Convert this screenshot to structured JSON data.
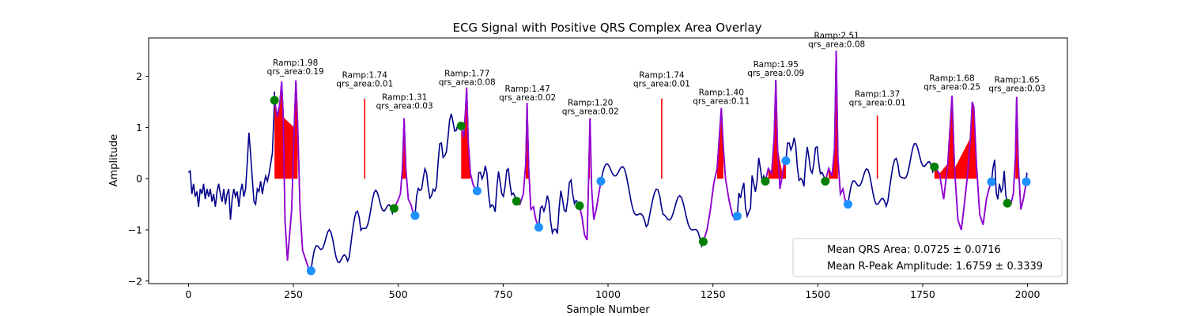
{
  "chart_data": {
    "type": "line",
    "title": "ECG Signal with Positive QRS Complex Area Overlay",
    "xlabel": "Sample Number",
    "ylabel": "Amplitude",
    "xlim": [
      -95,
      2095
    ],
    "ylim": [
      -2.05,
      2.75
    ],
    "xticks": [
      0,
      250,
      500,
      750,
      1000,
      1250,
      1500,
      1750,
      2000
    ],
    "yticks": [
      -2,
      -1,
      0,
      1,
      2
    ],
    "grid": false,
    "colors": {
      "signal": "#00008b",
      "qrs_segment": "#9400d3",
      "qrs_area": "#ff0000",
      "r_line": "#ff0000",
      "onset_marker": "#008000",
      "offset_marker": "#1e90ff"
    },
    "signal": {
      "name": "",
      "points": [
        [
          0,
          0.12
        ],
        [
          4,
          0.15
        ],
        [
          8,
          -0.3
        ],
        [
          12,
          -0.1
        ],
        [
          16,
          -0.35
        ],
        [
          20,
          -0.25
        ],
        [
          24,
          -0.55
        ],
        [
          28,
          -0.2
        ],
        [
          32,
          -0.3
        ],
        [
          36,
          -0.1
        ],
        [
          40,
          -0.4
        ],
        [
          44,
          -0.2
        ],
        [
          48,
          -0.35
        ],
        [
          52,
          -0.2
        ],
        [
          56,
          -0.45
        ],
        [
          60,
          -0.3
        ],
        [
          64,
          -0.55
        ],
        [
          68,
          -0.25
        ],
        [
          72,
          -0.1
        ],
        [
          76,
          -0.3
        ],
        [
          80,
          -0.45
        ],
        [
          84,
          -0.2
        ],
        [
          88,
          -0.5
        ],
        [
          92,
          -0.3
        ],
        [
          96,
          -0.2
        ],
        [
          100,
          -0.8
        ],
        [
          104,
          -0.4
        ],
        [
          108,
          -0.2
        ],
        [
          112,
          -0.35
        ],
        [
          116,
          -0.25
        ],
        [
          120,
          -0.55
        ],
        [
          124,
          -0.25
        ],
        [
          128,
          -0.1
        ],
        [
          132,
          -0.35
        ],
        [
          136,
          -0.2
        ],
        [
          140,
          0.3
        ],
        [
          144,
          0.9
        ],
        [
          148,
          0.5
        ],
        [
          152,
          0.0
        ],
        [
          156,
          -0.45
        ],
        [
          160,
          -0.5
        ],
        [
          164,
          -0.2
        ],
        [
          168,
          -0.25
        ],
        [
          172,
          -0.05
        ],
        [
          176,
          -0.3
        ],
        [
          180,
          -0.1
        ],
        [
          184,
          0.05
        ],
        [
          188,
          -0.05
        ],
        [
          192,
          0.1
        ],
        [
          196,
          0.3
        ],
        [
          200,
          0.5
        ],
        [
          205,
          1.53
        ]
      ]
    },
    "beats": [
      {
        "onset": [
          205,
          1.53
        ],
        "offset": [
          292,
          -1.8
        ],
        "r_x": 255,
        "r_amp": 1.98,
        "qrs_area": 0.19,
        "r_label": "Ramp:1.98",
        "area_label": "qrs_area:0.19",
        "segment": [
          [
            205,
            1.53
          ],
          [
            212,
            1.2
          ],
          [
            218,
            1.5
          ],
          [
            222,
            1.9
          ],
          [
            226,
            1.2
          ],
          [
            230,
            -0.8
          ],
          [
            236,
            -1.6
          ],
          [
            240,
            -1.2
          ],
          [
            246,
            -0.6
          ],
          [
            252,
            1.0
          ],
          [
            256,
            1.92
          ],
          [
            260,
            1.1
          ],
          [
            266,
            -0.6
          ],
          [
            272,
            -1.4
          ],
          [
            280,
            -1.6
          ],
          [
            286,
            -1.75
          ],
          [
            292,
            -1.8
          ]
        ]
      },
      {
        "onset": [
          490,
          -0.58
        ],
        "offset": [
          540,
          -0.72
        ],
        "r_x": 515,
        "r_amp": 1.31,
        "qrs_area": 0.03,
        "r_label": "Ramp:1.31",
        "area_label": "qrs_area:0.03",
        "segment": [
          [
            490,
            -0.58
          ],
          [
            498,
            -0.45
          ],
          [
            505,
            -0.3
          ],
          [
            510,
            0.2
          ],
          [
            514,
            1.18
          ],
          [
            518,
            0.2
          ],
          [
            524,
            -0.4
          ],
          [
            530,
            -0.5
          ],
          [
            535,
            -0.65
          ],
          [
            540,
            -0.72
          ]
        ]
      },
      {
        "onset": [
          650,
          1.03
        ],
        "offset": [
          688,
          -0.24
        ],
        "r_x": 664,
        "r_amp": 1.77,
        "qrs_area": 0.08,
        "r_label": "Ramp:1.77",
        "area_label": "qrs_area:0.08",
        "segment": [
          [
            650,
            1.03
          ],
          [
            656,
            0.8
          ],
          [
            660,
            1.3
          ],
          [
            663,
            1.78
          ],
          [
            667,
            0.7
          ],
          [
            672,
            0.1
          ],
          [
            678,
            -0.1
          ],
          [
            683,
            -0.2
          ],
          [
            688,
            -0.24
          ]
        ]
      },
      {
        "onset": [
          782,
          -0.44
        ],
        "offset": [
          835,
          -0.95
        ],
        "r_x": 808,
        "r_amp": 1.47,
        "qrs_area": 0.02,
        "r_label": "Ramp:1.47",
        "area_label": "qrs_area:0.02",
        "segment": [
          [
            782,
            -0.44
          ],
          [
            790,
            -0.5
          ],
          [
            798,
            -0.3
          ],
          [
            804,
            0.3
          ],
          [
            807,
            1.48
          ],
          [
            811,
            0.2
          ],
          [
            816,
            -0.6
          ],
          [
            822,
            -0.55
          ],
          [
            828,
            -0.8
          ],
          [
            835,
            -0.95
          ]
        ]
      },
      {
        "onset": [
          932,
          -0.53
        ],
        "offset": [
          983,
          -0.05
        ],
        "r_x": 958,
        "r_amp": 1.2,
        "qrs_area": 0.02,
        "r_label": "Ramp:1.20",
        "area_label": "qrs_area:0.02",
        "segment": [
          [
            932,
            -0.53
          ],
          [
            938,
            -0.75
          ],
          [
            944,
            -1.1
          ],
          [
            950,
            -1.2
          ],
          [
            954,
            0.1
          ],
          [
            957,
            1.18
          ],
          [
            961,
            -0.2
          ],
          [
            966,
            -0.8
          ],
          [
            972,
            -0.6
          ],
          [
            978,
            -0.3
          ],
          [
            983,
            -0.05
          ]
        ]
      },
      {
        "onset": [
          1227,
          -1.23
        ],
        "offset": [
          1308,
          -0.73
        ],
        "r_x": 1270,
        "r_amp": 1.4,
        "qrs_area": 0.11,
        "r_label": "Ramp:1.40",
        "area_label": "qrs_area:0.11",
        "segment": [
          [
            1227,
            -1.23
          ],
          [
            1236,
            -1.0
          ],
          [
            1244,
            -0.6
          ],
          [
            1252,
            -0.1
          ],
          [
            1260,
            0.2
          ],
          [
            1266,
            0.9
          ],
          [
            1270,
            1.38
          ],
          [
            1275,
            0.6
          ],
          [
            1280,
            0.0
          ],
          [
            1288,
            -0.4
          ],
          [
            1296,
            -0.7
          ],
          [
            1302,
            -0.8
          ],
          [
            1308,
            -0.73
          ]
        ]
      },
      {
        "onset": [
          1375,
          -0.05
        ],
        "offset": [
          1424,
          0.35
        ],
        "r_x": 1400,
        "r_amp": 1.95,
        "qrs_area": 0.09,
        "r_label": "Ramp:1.95",
        "area_label": "qrs_area:0.09",
        "segment": [
          [
            1375,
            -0.05
          ],
          [
            1382,
            0.2
          ],
          [
            1390,
            0.1
          ],
          [
            1396,
            0.8
          ],
          [
            1400,
            1.93
          ],
          [
            1404,
            0.6
          ],
          [
            1410,
            -0.2
          ],
          [
            1416,
            0.1
          ],
          [
            1420,
            0.3
          ],
          [
            1424,
            0.35
          ]
        ]
      },
      {
        "onset": [
          1518,
          -0.05
        ],
        "offset": [
          1572,
          -0.5
        ],
        "r_x": 1545,
        "r_amp": 2.51,
        "qrs_area": 0.08,
        "r_label": "Ramp:2.51",
        "area_label": "qrs_area:0.08",
        "segment": [
          [
            1518,
            -0.05
          ],
          [
            1526,
            0.2
          ],
          [
            1534,
            0.05
          ],
          [
            1540,
            0.6
          ],
          [
            1544,
            2.5
          ],
          [
            1548,
            0.4
          ],
          [
            1554,
            -0.3
          ],
          [
            1560,
            -0.2
          ],
          [
            1566,
            -0.45
          ],
          [
            1572,
            -0.5
          ]
        ]
      },
      {
        "onset": [
          1778,
          0.23
        ],
        "offset": [
          1914,
          -0.06
        ],
        "r_x": 1820,
        "r_amp": 1.68,
        "qrs_area": 0.25,
        "r_label": "Ramp:1.68",
        "area_label": "qrs_area:0.25",
        "segment": [
          [
            1778,
            0.23
          ],
          [
            1790,
            0.1
          ],
          [
            1800,
            -0.4
          ],
          [
            1810,
            0.3
          ],
          [
            1816,
            1.1
          ],
          [
            1820,
            1.62
          ],
          [
            1826,
            0.2
          ],
          [
            1834,
            -0.8
          ],
          [
            1842,
            -1.0
          ],
          [
            1848,
            -0.6
          ],
          [
            1856,
            0.0
          ],
          [
            1864,
            0.8
          ],
          [
            1868,
            1.5
          ],
          [
            1872,
            1.4
          ],
          [
            1878,
            0.3
          ],
          [
            1886,
            -0.7
          ],
          [
            1894,
            -0.9
          ],
          [
            1902,
            -0.4
          ],
          [
            1908,
            -0.2
          ],
          [
            1914,
            -0.06
          ]
        ]
      },
      {
        "onset": [
          1952,
          -0.48
        ],
        "offset": [
          1997,
          -0.06
        ],
        "r_x": 1975,
        "r_amp": 1.65,
        "qrs_area": 0.03,
        "r_label": "Ramp:1.65",
        "area_label": "qrs_area:0.03",
        "segment": [
          [
            1952,
            -0.48
          ],
          [
            1960,
            -0.5
          ],
          [
            1966,
            -0.3
          ],
          [
            1971,
            0.4
          ],
          [
            1974,
            1.6
          ],
          [
            1978,
            0.3
          ],
          [
            1984,
            -0.6
          ],
          [
            1990,
            -0.4
          ],
          [
            1997,
            -0.06
          ]
        ]
      }
    ],
    "r_lines": [
      {
        "x": 420,
        "r_amp": 1.74,
        "qrs_area": 0.01,
        "r_label": "Ramp:1.74",
        "area_label": "qrs_area:0.01"
      },
      {
        "x": 1128,
        "r_amp": 1.74,
        "qrs_area": 0.01,
        "r_label": "Ramp:1.74",
        "area_label": "qrs_area:0.01"
      },
      {
        "x": 1642,
        "r_amp": 1.37,
        "qrs_area": 0.01,
        "r_label": "Ramp:1.37",
        "area_label": "qrs_area:0.01"
      }
    ],
    "legend": {
      "placement": "lower-right",
      "entries": [
        "Mean QRS Area: 0.0725 ± 0.0716",
        "Mean R-Peak Amplitude: 1.6759 ± 0.3339"
      ]
    }
  }
}
